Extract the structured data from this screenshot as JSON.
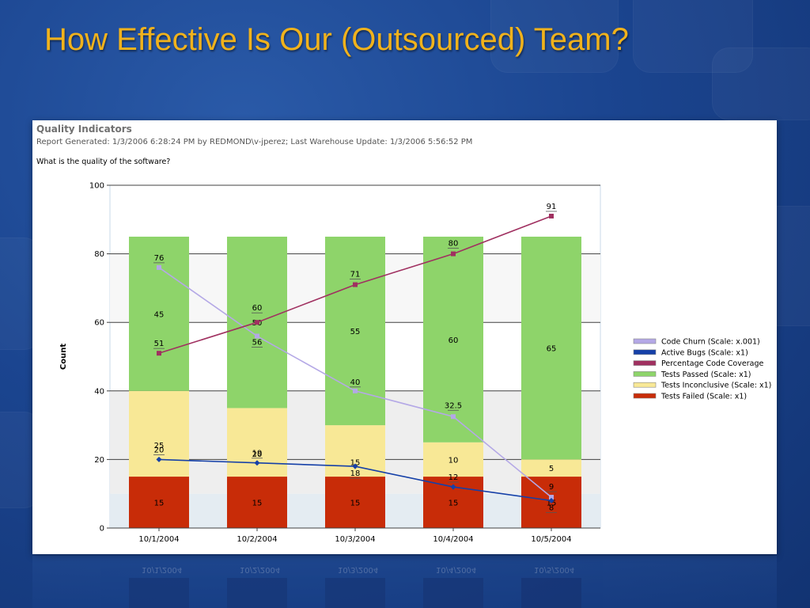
{
  "slide": {
    "title": "How Effective Is Our (Outsourced) Team?"
  },
  "report": {
    "title": "Quality Indicators",
    "meta": "Report Generated: 1/3/2006 6:28:24 PM by REDMOND\\v-jperez; Last Warehouse Update: 1/3/2006 5:56:52 PM",
    "question": "What is the quality of the software?"
  },
  "colors": {
    "title_accent": "#f0b21c",
    "code_churn": "#b4a8e6",
    "active_bugs": "#1540a8",
    "code_coverage": "#a03060",
    "tests_passed": "#8ed46a",
    "tests_inconclusive": "#f8e896",
    "tests_failed": "#c82c08"
  },
  "chart_data": {
    "type": "bar",
    "stacked": true,
    "ylabel": "Count",
    "xlabel": "",
    "ylim": [
      0,
      100
    ],
    "yticks": [
      0,
      20,
      40,
      60,
      80,
      100
    ],
    "categories": [
      "10/1/2004",
      "10/2/2004",
      "10/3/2004",
      "10/4/2004",
      "10/5/2004"
    ],
    "legend_position": "right",
    "series": [
      {
        "name": "Tests Failed (Scale: x1)",
        "kind": "bar",
        "color": "#c82c08",
        "values": [
          15,
          15,
          15,
          15,
          15
        ]
      },
      {
        "name": "Tests Inconclusive (Scale: x1)",
        "kind": "bar",
        "color": "#f8e896",
        "values": [
          25,
          20,
          15,
          10,
          5
        ]
      },
      {
        "name": "Tests Passed (Scale: x1)",
        "kind": "bar",
        "color": "#8ed46a",
        "values": [
          45,
          50,
          55,
          60,
          65
        ]
      },
      {
        "name": "Code Churn (Scale: x.001)",
        "kind": "line",
        "color": "#b4a8e6",
        "values": [
          76,
          56,
          40,
          32.5,
          9
        ]
      },
      {
        "name": "Active Bugs (Scale: x1)",
        "kind": "line",
        "color": "#1540a8",
        "values": [
          20,
          19,
          18,
          12,
          8
        ]
      },
      {
        "name": "Percentage Code Coverage",
        "kind": "line",
        "color": "#a03060",
        "values": [
          51,
          60,
          71,
          80,
          91
        ]
      }
    ],
    "legend": [
      {
        "name": "Code Churn (Scale: x.001)",
        "color": "#b4a8e6"
      },
      {
        "name": "Active Bugs (Scale: x1)",
        "color": "#1540a8"
      },
      {
        "name": "Percentage Code Coverage",
        "color": "#a03060"
      },
      {
        "name": "Tests Passed (Scale: x1)",
        "color": "#8ed46a"
      },
      {
        "name": "Tests Inconclusive (Scale: x1)",
        "color": "#f8e896"
      },
      {
        "name": "Tests Failed (Scale: x1)",
        "color": "#c82c08"
      }
    ]
  }
}
